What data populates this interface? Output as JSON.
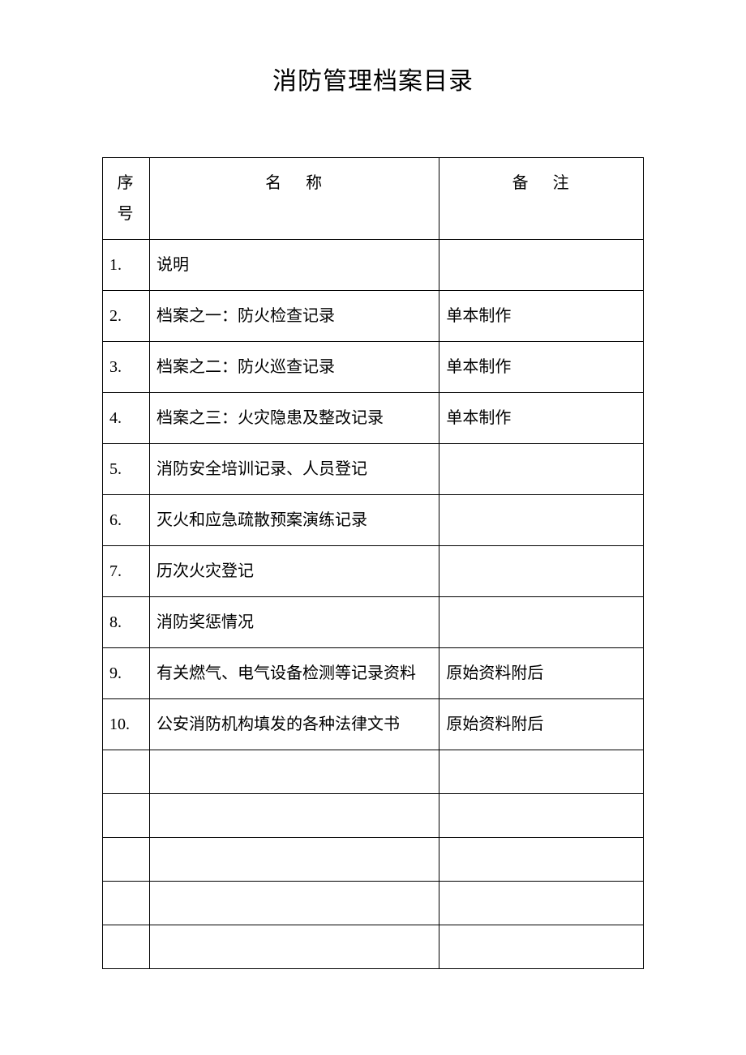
{
  "title": "消防管理档案目录",
  "table": {
    "headers": {
      "index": "序号",
      "name_char1": "名",
      "name_char2": "称",
      "remark_char1": "备",
      "remark_char2": "注"
    },
    "rows": [
      {
        "index": "1.",
        "name": "说明",
        "remark": ""
      },
      {
        "index": "2.",
        "name": "档案之一：防火检查记录",
        "remark": "单本制作"
      },
      {
        "index": "3.",
        "name": "档案之二：防火巡查记录",
        "remark": "单本制作"
      },
      {
        "index": "4.",
        "name": "档案之三：火灾隐患及整改记录",
        "remark": "单本制作"
      },
      {
        "index": "5.",
        "name": "消防安全培训记录、人员登记",
        "remark": ""
      },
      {
        "index": "6.",
        "name": "灭火和应急疏散预案演练记录",
        "remark": ""
      },
      {
        "index": "7.",
        "name": "历次火灾登记",
        "remark": ""
      },
      {
        "index": "8.",
        "name": "消防奖惩情况",
        "remark": ""
      },
      {
        "index": "9.",
        "name": "有关燃气、电气设备检测等记录资料",
        "remark": "原始资料附后"
      },
      {
        "index": "10.",
        "name": "公安消防机构填发的各种法律文书",
        "remark": "原始资料附后"
      },
      {
        "index": "",
        "name": "",
        "remark": ""
      },
      {
        "index": "",
        "name": "",
        "remark": ""
      },
      {
        "index": "",
        "name": "",
        "remark": ""
      },
      {
        "index": "",
        "name": "",
        "remark": ""
      },
      {
        "index": "",
        "name": "",
        "remark": ""
      }
    ],
    "colors": {
      "background": "#ffffff",
      "text": "#000000",
      "border": "#000000"
    },
    "fontsize": {
      "title": 30,
      "body": 20
    }
  }
}
